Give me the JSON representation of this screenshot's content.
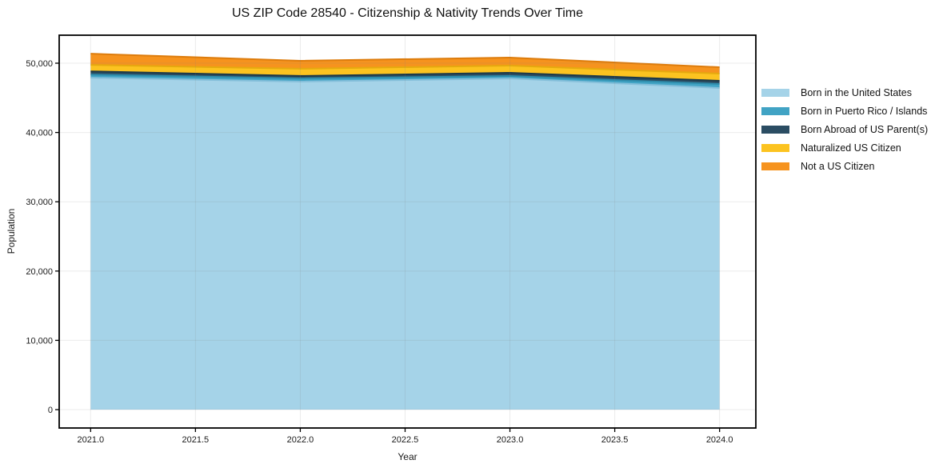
{
  "figure": {
    "title": "US ZIP Code 28540 - Citizenship & Nativity Trends Over Time"
  },
  "chart_data": {
    "type": "area",
    "stacked": true,
    "title": "US ZIP Code 28540 - Citizenship & Nativity Trends Over Time",
    "xlabel": "Year",
    "ylabel": "Population",
    "x": [
      2021,
      2022,
      2023,
      2024
    ],
    "series": [
      {
        "name": "Born in the United States",
        "color": "#a5d3e8",
        "edge_color": "#85bfda",
        "values": [
          47900,
          47350,
          47800,
          46420
        ]
      },
      {
        "name": "Born in Puerto Rico / Islands",
        "color": "#41a3c4",
        "edge_color": "#2e8cab",
        "values": [
          460,
          460,
          350,
          580
        ]
      },
      {
        "name": "Born Abroad of US Parent(s)",
        "color": "#2b4d63",
        "edge_color": "#1d3949",
        "values": [
          460,
          350,
          460,
          460
        ]
      },
      {
        "name": "Naturalized US Citizen",
        "color": "#fcc320",
        "edge_color": "#e5a90f",
        "values": [
          930,
          1040,
          1040,
          1040
        ]
      },
      {
        "name": "Not a US Citizen",
        "color": "#f6931e",
        "edge_color": "#dd7c0c",
        "values": [
          1620,
          1150,
          1160,
          920
        ]
      }
    ],
    "xlim": [
      2020.85,
      2024.173
    ],
    "ylim": [
      -2650,
      54040
    ],
    "xticks": [
      2021.0,
      2021.5,
      2022.0,
      2022.5,
      2023.0,
      2023.5,
      2024.0
    ],
    "xtick_labels": [
      "2021.0",
      "2021.5",
      "2022.0",
      "2022.5",
      "2023.0",
      "2023.5",
      "2024.0"
    ],
    "yticks": [
      0,
      10000,
      20000,
      30000,
      40000,
      50000
    ],
    "ytick_labels": [
      "0",
      "10,000",
      "20,000",
      "30,000",
      "40,000",
      "50,000"
    ],
    "grid": true,
    "grid_color": "#808080",
    "frame_color": "#000000",
    "legend_position": "right"
  }
}
